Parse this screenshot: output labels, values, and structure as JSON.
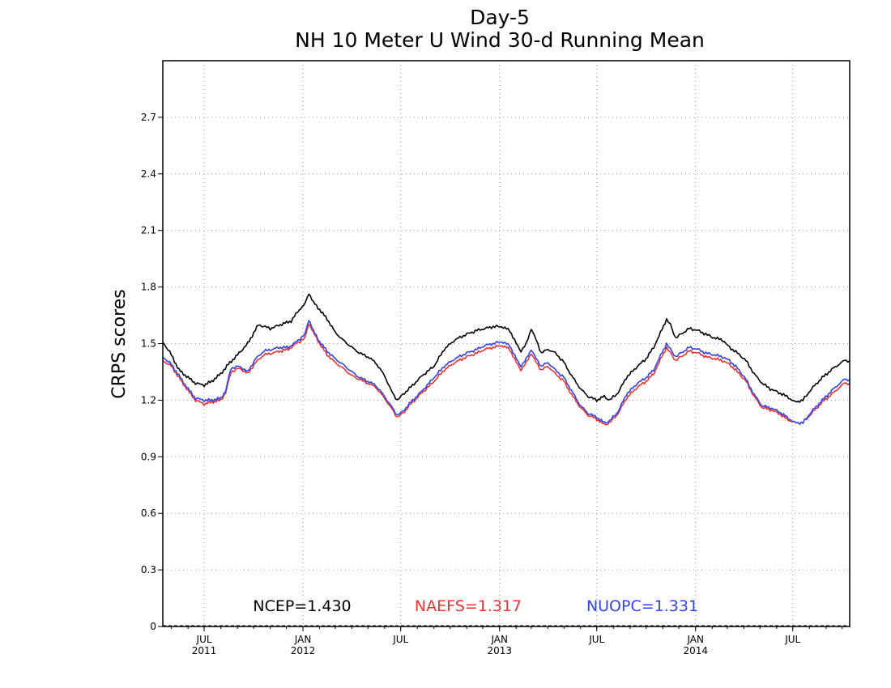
{
  "chart_data": {
    "type": "line",
    "title": "Day-5",
    "subtitle": "NH 10 Meter U Wind 30-d Running Mean",
    "xlabel": "",
    "ylabel": "CRPS scores",
    "xlim": [
      "2011-04-15",
      "2014-10-15"
    ],
    "ylim": [
      0,
      3.0
    ],
    "yticks": [
      0,
      0.3,
      0.6,
      0.9,
      1.2,
      1.5,
      1.8,
      2.1,
      2.4,
      2.7
    ],
    "ytick_labels": [
      "0",
      "0.3",
      "0.6",
      "0.9",
      "1.2",
      "1.5",
      "1.8",
      "2.1",
      "2.4",
      "2.7"
    ],
    "xticks": [
      {
        "date": "2011-07-01",
        "line1": "JUL",
        "line2": "2011"
      },
      {
        "date": "2012-01-01",
        "line1": "JAN",
        "line2": "2012"
      },
      {
        "date": "2012-07-01",
        "line1": "JUL",
        "line2": ""
      },
      {
        "date": "2013-01-01",
        "line1": "JAN",
        "line2": "2013"
      },
      {
        "date": "2013-07-01",
        "line1": "JUL",
        "line2": ""
      },
      {
        "date": "2014-01-01",
        "line1": "JAN",
        "line2": "2014"
      },
      {
        "date": "2014-07-01",
        "line1": "JUL",
        "line2": ""
      }
    ],
    "grid": true,
    "legend": "bottom",
    "series": [
      {
        "name": "NCEP",
        "color": "#000000",
        "mean_label": "NCEP=1.430",
        "points": [
          [
            "2011-04-15",
            1.51
          ],
          [
            "2011-05-01",
            1.44
          ],
          [
            "2011-05-15",
            1.36
          ],
          [
            "2011-06-01",
            1.32
          ],
          [
            "2011-06-15",
            1.29
          ],
          [
            "2011-07-01",
            1.28
          ],
          [
            "2011-07-15",
            1.3
          ],
          [
            "2011-08-01",
            1.34
          ],
          [
            "2011-08-15",
            1.39
          ],
          [
            "2011-09-01",
            1.44
          ],
          [
            "2011-09-20",
            1.5
          ],
          [
            "2011-10-10",
            1.6
          ],
          [
            "2011-11-01",
            1.58
          ],
          [
            "2011-11-20",
            1.6
          ],
          [
            "2011-12-10",
            1.62
          ],
          [
            "2011-12-25",
            1.68
          ],
          [
            "2012-01-05",
            1.71
          ],
          [
            "2012-01-12",
            1.77
          ],
          [
            "2012-01-20",
            1.72
          ],
          [
            "2012-02-01",
            1.68
          ],
          [
            "2012-02-15",
            1.63
          ],
          [
            "2012-03-01",
            1.56
          ],
          [
            "2012-03-15",
            1.52
          ],
          [
            "2012-04-01",
            1.48
          ],
          [
            "2012-04-15",
            1.45
          ],
          [
            "2012-05-01",
            1.43
          ],
          [
            "2012-05-15",
            1.4
          ],
          [
            "2012-06-01",
            1.33
          ],
          [
            "2012-06-15",
            1.24
          ],
          [
            "2012-06-25",
            1.2
          ],
          [
            "2012-07-05",
            1.23
          ],
          [
            "2012-07-20",
            1.27
          ],
          [
            "2012-08-10",
            1.33
          ],
          [
            "2012-09-01",
            1.38
          ],
          [
            "2012-09-20",
            1.47
          ],
          [
            "2012-10-10",
            1.52
          ],
          [
            "2012-11-01",
            1.55
          ],
          [
            "2012-11-20",
            1.57
          ],
          [
            "2012-12-05",
            1.58
          ],
          [
            "2012-12-20",
            1.59
          ],
          [
            "2013-01-05",
            1.59
          ],
          [
            "2013-01-20",
            1.57
          ],
          [
            "2013-02-01",
            1.5
          ],
          [
            "2013-02-10",
            1.46
          ],
          [
            "2013-02-20",
            1.5
          ],
          [
            "2013-03-01",
            1.58
          ],
          [
            "2013-03-10",
            1.52
          ],
          [
            "2013-03-20",
            1.45
          ],
          [
            "2013-04-01",
            1.47
          ],
          [
            "2013-04-15",
            1.45
          ],
          [
            "2013-05-01",
            1.4
          ],
          [
            "2013-05-15",
            1.33
          ],
          [
            "2013-06-01",
            1.26
          ],
          [
            "2013-06-15",
            1.22
          ],
          [
            "2013-07-01",
            1.2
          ],
          [
            "2013-07-15",
            1.22
          ],
          [
            "2013-07-25",
            1.2
          ],
          [
            "2013-08-10",
            1.24
          ],
          [
            "2013-08-25",
            1.32
          ],
          [
            "2013-09-15",
            1.38
          ],
          [
            "2013-10-01",
            1.42
          ],
          [
            "2013-10-15",
            1.48
          ],
          [
            "2013-10-25",
            1.54
          ],
          [
            "2013-11-08",
            1.63
          ],
          [
            "2013-11-15",
            1.6
          ],
          [
            "2013-11-25",
            1.53
          ],
          [
            "2013-12-05",
            1.55
          ],
          [
            "2013-12-20",
            1.58
          ],
          [
            "2014-01-05",
            1.57
          ],
          [
            "2014-01-20",
            1.55
          ],
          [
            "2014-02-05",
            1.53
          ],
          [
            "2014-02-20",
            1.52
          ],
          [
            "2014-03-05",
            1.48
          ],
          [
            "2014-03-20",
            1.45
          ],
          [
            "2014-04-05",
            1.41
          ],
          [
            "2014-04-20",
            1.34
          ],
          [
            "2014-05-05",
            1.29
          ],
          [
            "2014-05-20",
            1.26
          ],
          [
            "2014-06-05",
            1.24
          ],
          [
            "2014-06-20",
            1.22
          ],
          [
            "2014-07-05",
            1.19
          ],
          [
            "2014-07-20",
            1.2
          ],
          [
            "2014-08-05",
            1.26
          ],
          [
            "2014-08-25",
            1.32
          ],
          [
            "2014-09-15",
            1.37
          ],
          [
            "2014-10-05",
            1.41
          ],
          [
            "2014-10-15",
            1.41
          ]
        ]
      },
      {
        "name": "NAEFS",
        "color": "#ee3333",
        "mean_label": "NAEFS=1.317",
        "points": [
          [
            "2011-04-15",
            1.41
          ],
          [
            "2011-05-01",
            1.38
          ],
          [
            "2011-05-15",
            1.32
          ],
          [
            "2011-06-01",
            1.25
          ],
          [
            "2011-06-15",
            1.2
          ],
          [
            "2011-07-01",
            1.18
          ],
          [
            "2011-07-15",
            1.19
          ],
          [
            "2011-08-01",
            1.2
          ],
          [
            "2011-08-10",
            1.24
          ],
          [
            "2011-08-20",
            1.35
          ],
          [
            "2011-09-05",
            1.37
          ],
          [
            "2011-09-20",
            1.34
          ],
          [
            "2011-10-05",
            1.4
          ],
          [
            "2011-10-20",
            1.44
          ],
          [
            "2011-11-05",
            1.45
          ],
          [
            "2011-11-20",
            1.46
          ],
          [
            "2011-12-05",
            1.47
          ],
          [
            "2011-12-20",
            1.5
          ],
          [
            "2012-01-05",
            1.53
          ],
          [
            "2012-01-12",
            1.61
          ],
          [
            "2012-01-20",
            1.56
          ],
          [
            "2012-02-01",
            1.5
          ],
          [
            "2012-02-15",
            1.44
          ],
          [
            "2012-03-01",
            1.4
          ],
          [
            "2012-03-15",
            1.37
          ],
          [
            "2012-04-01",
            1.33
          ],
          [
            "2012-04-15",
            1.31
          ],
          [
            "2012-05-01",
            1.29
          ],
          [
            "2012-05-15",
            1.27
          ],
          [
            "2012-06-01",
            1.21
          ],
          [
            "2012-06-15",
            1.15
          ],
          [
            "2012-06-25",
            1.11
          ],
          [
            "2012-07-05",
            1.13
          ],
          [
            "2012-07-20",
            1.18
          ],
          [
            "2012-08-10",
            1.24
          ],
          [
            "2012-09-01",
            1.3
          ],
          [
            "2012-09-20",
            1.36
          ],
          [
            "2012-10-10",
            1.4
          ],
          [
            "2012-11-01",
            1.43
          ],
          [
            "2012-11-20",
            1.45
          ],
          [
            "2012-12-05",
            1.47
          ],
          [
            "2012-12-20",
            1.48
          ],
          [
            "2013-01-05",
            1.49
          ],
          [
            "2013-01-20",
            1.47
          ],
          [
            "2013-02-01",
            1.4
          ],
          [
            "2013-02-10",
            1.36
          ],
          [
            "2013-02-20",
            1.4
          ],
          [
            "2013-03-01",
            1.45
          ],
          [
            "2013-03-10",
            1.4
          ],
          [
            "2013-03-20",
            1.36
          ],
          [
            "2013-04-01",
            1.38
          ],
          [
            "2013-04-15",
            1.34
          ],
          [
            "2013-05-01",
            1.3
          ],
          [
            "2013-05-15",
            1.23
          ],
          [
            "2013-06-01",
            1.16
          ],
          [
            "2013-06-15",
            1.12
          ],
          [
            "2013-07-01",
            1.1
          ],
          [
            "2013-07-15",
            1.07
          ],
          [
            "2013-07-25",
            1.08
          ],
          [
            "2013-08-10",
            1.13
          ],
          [
            "2013-08-25",
            1.21
          ],
          [
            "2013-09-15",
            1.27
          ],
          [
            "2013-10-01",
            1.3
          ],
          [
            "2013-10-15",
            1.34
          ],
          [
            "2013-10-25",
            1.4
          ],
          [
            "2013-11-08",
            1.48
          ],
          [
            "2013-11-15",
            1.45
          ],
          [
            "2013-11-25",
            1.41
          ],
          [
            "2013-12-05",
            1.43
          ],
          [
            "2013-12-20",
            1.46
          ],
          [
            "2014-01-05",
            1.45
          ],
          [
            "2014-01-20",
            1.43
          ],
          [
            "2014-02-05",
            1.42
          ],
          [
            "2014-02-20",
            1.41
          ],
          [
            "2014-03-05",
            1.39
          ],
          [
            "2014-03-20",
            1.35
          ],
          [
            "2014-04-05",
            1.3
          ],
          [
            "2014-04-20",
            1.22
          ],
          [
            "2014-05-05",
            1.16
          ],
          [
            "2014-05-20",
            1.15
          ],
          [
            "2014-06-05",
            1.13
          ],
          [
            "2014-06-20",
            1.1
          ],
          [
            "2014-07-05",
            1.08
          ],
          [
            "2014-07-20",
            1.08
          ],
          [
            "2014-08-05",
            1.13
          ],
          [
            "2014-08-25",
            1.19
          ],
          [
            "2014-09-15",
            1.24
          ],
          [
            "2014-10-05",
            1.29
          ],
          [
            "2014-10-15",
            1.29
          ]
        ]
      },
      {
        "name": "NUOPC",
        "color": "#3344ee",
        "mean_label": "NUOPC=1.331",
        "points": [
          [
            "2011-04-15",
            1.43
          ],
          [
            "2011-05-01",
            1.39
          ],
          [
            "2011-05-15",
            1.33
          ],
          [
            "2011-06-01",
            1.26
          ],
          [
            "2011-06-15",
            1.21
          ],
          [
            "2011-07-01",
            1.2
          ],
          [
            "2011-07-15",
            1.2
          ],
          [
            "2011-08-01",
            1.21
          ],
          [
            "2011-08-10",
            1.25
          ],
          [
            "2011-08-20",
            1.37
          ],
          [
            "2011-09-05",
            1.38
          ],
          [
            "2011-09-20",
            1.35
          ],
          [
            "2011-10-05",
            1.42
          ],
          [
            "2011-10-20",
            1.46
          ],
          [
            "2011-11-05",
            1.47
          ],
          [
            "2011-11-20",
            1.48
          ],
          [
            "2011-12-05",
            1.48
          ],
          [
            "2011-12-20",
            1.51
          ],
          [
            "2012-01-05",
            1.55
          ],
          [
            "2012-01-12",
            1.63
          ],
          [
            "2012-01-20",
            1.57
          ],
          [
            "2012-02-01",
            1.51
          ],
          [
            "2012-02-15",
            1.46
          ],
          [
            "2012-03-01",
            1.42
          ],
          [
            "2012-03-15",
            1.39
          ],
          [
            "2012-04-01",
            1.35
          ],
          [
            "2012-04-15",
            1.32
          ],
          [
            "2012-05-01",
            1.3
          ],
          [
            "2012-05-15",
            1.28
          ],
          [
            "2012-06-01",
            1.22
          ],
          [
            "2012-06-15",
            1.16
          ],
          [
            "2012-06-25",
            1.12
          ],
          [
            "2012-07-05",
            1.14
          ],
          [
            "2012-07-20",
            1.19
          ],
          [
            "2012-08-10",
            1.25
          ],
          [
            "2012-09-01",
            1.32
          ],
          [
            "2012-09-20",
            1.38
          ],
          [
            "2012-10-10",
            1.42
          ],
          [
            "2012-11-01",
            1.45
          ],
          [
            "2012-11-20",
            1.47
          ],
          [
            "2012-12-05",
            1.49
          ],
          [
            "2012-12-20",
            1.5
          ],
          [
            "2013-01-05",
            1.51
          ],
          [
            "2013-01-20",
            1.49
          ],
          [
            "2013-02-01",
            1.42
          ],
          [
            "2013-02-10",
            1.38
          ],
          [
            "2013-02-20",
            1.42
          ],
          [
            "2013-03-01",
            1.47
          ],
          [
            "2013-03-10",
            1.42
          ],
          [
            "2013-03-20",
            1.38
          ],
          [
            "2013-04-01",
            1.4
          ],
          [
            "2013-04-15",
            1.36
          ],
          [
            "2013-05-01",
            1.32
          ],
          [
            "2013-05-15",
            1.25
          ],
          [
            "2013-06-01",
            1.17
          ],
          [
            "2013-06-15",
            1.13
          ],
          [
            "2013-07-01",
            1.11
          ],
          [
            "2013-07-15",
            1.08
          ],
          [
            "2013-07-25",
            1.09
          ],
          [
            "2013-08-10",
            1.14
          ],
          [
            "2013-08-25",
            1.23
          ],
          [
            "2013-09-15",
            1.29
          ],
          [
            "2013-10-01",
            1.32
          ],
          [
            "2013-10-15",
            1.36
          ],
          [
            "2013-10-25",
            1.42
          ],
          [
            "2013-11-08",
            1.5
          ],
          [
            "2013-11-15",
            1.47
          ],
          [
            "2013-11-25",
            1.43
          ],
          [
            "2013-12-05",
            1.45
          ],
          [
            "2013-12-20",
            1.48
          ],
          [
            "2014-01-05",
            1.47
          ],
          [
            "2014-01-20",
            1.45
          ],
          [
            "2014-02-05",
            1.44
          ],
          [
            "2014-02-20",
            1.43
          ],
          [
            "2014-03-05",
            1.41
          ],
          [
            "2014-03-20",
            1.37
          ],
          [
            "2014-04-05",
            1.31
          ],
          [
            "2014-04-20",
            1.23
          ],
          [
            "2014-05-05",
            1.17
          ],
          [
            "2014-05-20",
            1.16
          ],
          [
            "2014-06-05",
            1.14
          ],
          [
            "2014-06-20",
            1.11
          ],
          [
            "2014-07-05",
            1.08
          ],
          [
            "2014-07-20",
            1.08
          ],
          [
            "2014-08-05",
            1.14
          ],
          [
            "2014-08-25",
            1.2
          ],
          [
            "2014-09-15",
            1.26
          ],
          [
            "2014-10-05",
            1.31
          ],
          [
            "2014-10-15",
            1.31
          ]
        ]
      }
    ]
  }
}
